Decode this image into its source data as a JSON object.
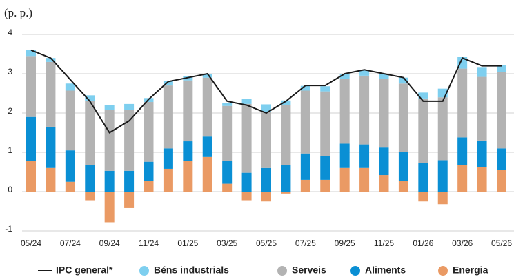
{
  "chart_data": {
    "type": "bar",
    "stacked": true,
    "subtitle": "(p. p.)",
    "categories": [
      "05/24",
      null,
      "07/24",
      null,
      "09/24",
      null,
      "11/24",
      null,
      "01/25",
      null,
      "03/25",
      null,
      "05/25",
      null,
      "07/25",
      null,
      "09/25",
      null,
      "11/25",
      null,
      "01/26",
      null,
      "03/26",
      null,
      "05/26"
    ],
    "series": [
      {
        "name": "IPC general*",
        "type": "line",
        "color": "#1a1a1a",
        "values": [
          3.6,
          3.4,
          2.85,
          2.3,
          1.5,
          1.8,
          2.35,
          2.8,
          2.9,
          3.0,
          2.3,
          2.2,
          2.0,
          2.3,
          2.7,
          2.7,
          3.0,
          3.1,
          3.0,
          2.9,
          2.3,
          2.3,
          3.4,
          3.2,
          3.2
        ]
      },
      {
        "name": "Béns industrials",
        "type": "bar",
        "color": "#7ecfef",
        "values": [
          0.15,
          0.1,
          0.18,
          0.15,
          0.12,
          0.15,
          0.1,
          0.12,
          0.1,
          0.1,
          0.07,
          0.13,
          0.2,
          0.12,
          0.12,
          0.13,
          0.12,
          0.13,
          0.13,
          0.15,
          0.15,
          0.22,
          0.3,
          0.25,
          0.17
        ]
      },
      {
        "name": "Serveis",
        "type": "bar",
        "color": "#b3b3b3",
        "values": [
          1.55,
          1.65,
          1.52,
          1.62,
          1.55,
          1.55,
          1.52,
          1.6,
          1.55,
          1.5,
          1.4,
          1.75,
          1.42,
          1.52,
          1.6,
          1.65,
          1.65,
          1.75,
          1.75,
          1.75,
          1.65,
          1.6,
          1.75,
          1.62,
          1.95
        ]
      },
      {
        "name": "Aliments",
        "type": "bar",
        "color": "#0a8fd4",
        "values": [
          1.12,
          1.05,
          0.8,
          0.68,
          0.53,
          0.53,
          0.48,
          0.52,
          0.5,
          0.52,
          0.58,
          0.48,
          0.6,
          0.68,
          0.67,
          0.6,
          0.62,
          0.6,
          0.7,
          0.72,
          0.72,
          0.8,
          0.7,
          0.68,
          0.55
        ]
      },
      {
        "name": "Energia",
        "type": "bar",
        "color": "#ea9a64",
        "values": [
          0.78,
          0.6,
          0.25,
          -0.22,
          -0.78,
          -0.42,
          0.28,
          0.58,
          0.78,
          0.88,
          0.2,
          -0.22,
          -0.25,
          -0.05,
          0.3,
          0.3,
          0.6,
          0.6,
          0.42,
          0.28,
          -0.25,
          -0.32,
          0.68,
          0.62,
          0.55
        ]
      }
    ],
    "ylim": [
      -1,
      4
    ],
    "yticks": [
      -1,
      0,
      1,
      2,
      3,
      4
    ],
    "grid": true
  }
}
